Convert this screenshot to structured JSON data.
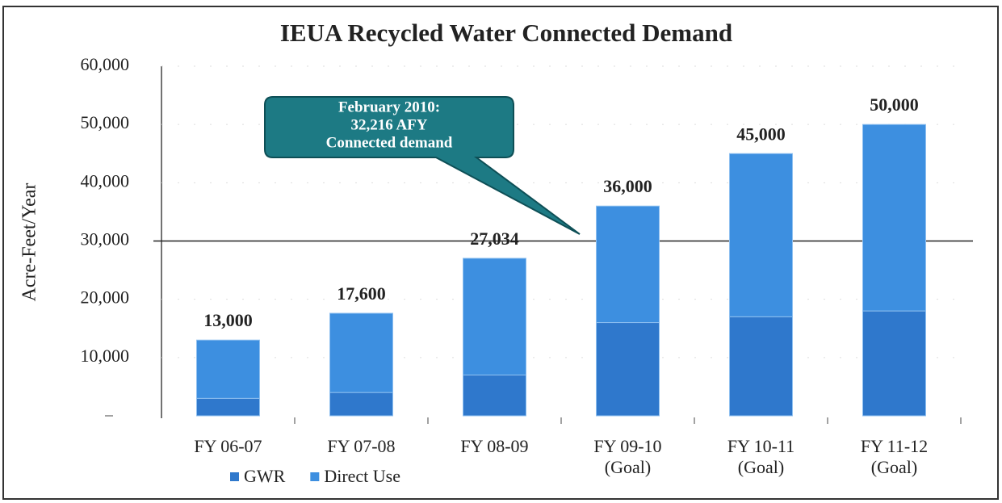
{
  "chart_data": {
    "type": "stacked_bar",
    "title": "IEUA Recycled Water Connected Demand",
    "y_label": "Acre-Feet/Year",
    "categories": [
      "FY 06-07",
      "FY 07-08",
      "FY 08-09",
      "FY 09-10 (Goal)",
      "FY 10-11 (Goal)",
      "FY 11-12 (Goal)"
    ],
    "series": [
      {
        "name": "GWR",
        "color": "#2f78cc",
        "values": [
          3000,
          4000,
          7000,
          16000,
          17000,
          18000
        ]
      },
      {
        "name": "Direct Use",
        "color": "#3d8fe0",
        "values": [
          10000,
          13600,
          20034,
          20000,
          28000,
          32000
        ]
      }
    ],
    "totals": [
      13000,
      17600,
      27034,
      36000,
      45000,
      50000
    ],
    "total_labels": [
      "13,000",
      "17,600",
      "27,034",
      "36,000",
      "45,000",
      "50,000"
    ],
    "ylim": [
      0,
      60000
    ],
    "yticks": [
      {
        "value": 10000,
        "label": "10,000"
      },
      {
        "value": 20000,
        "label": "20,000"
      },
      {
        "value": 30000,
        "label": "30,000"
      },
      {
        "value": 40000,
        "label": "40,000"
      },
      {
        "value": 50000,
        "label": "50,000"
      },
      {
        "value": 60000,
        "label": "60,000"
      }
    ],
    "reference_line": 30000,
    "annotation": [
      "February 2010:",
      "32,216 AFY",
      "Connected demand"
    ]
  }
}
